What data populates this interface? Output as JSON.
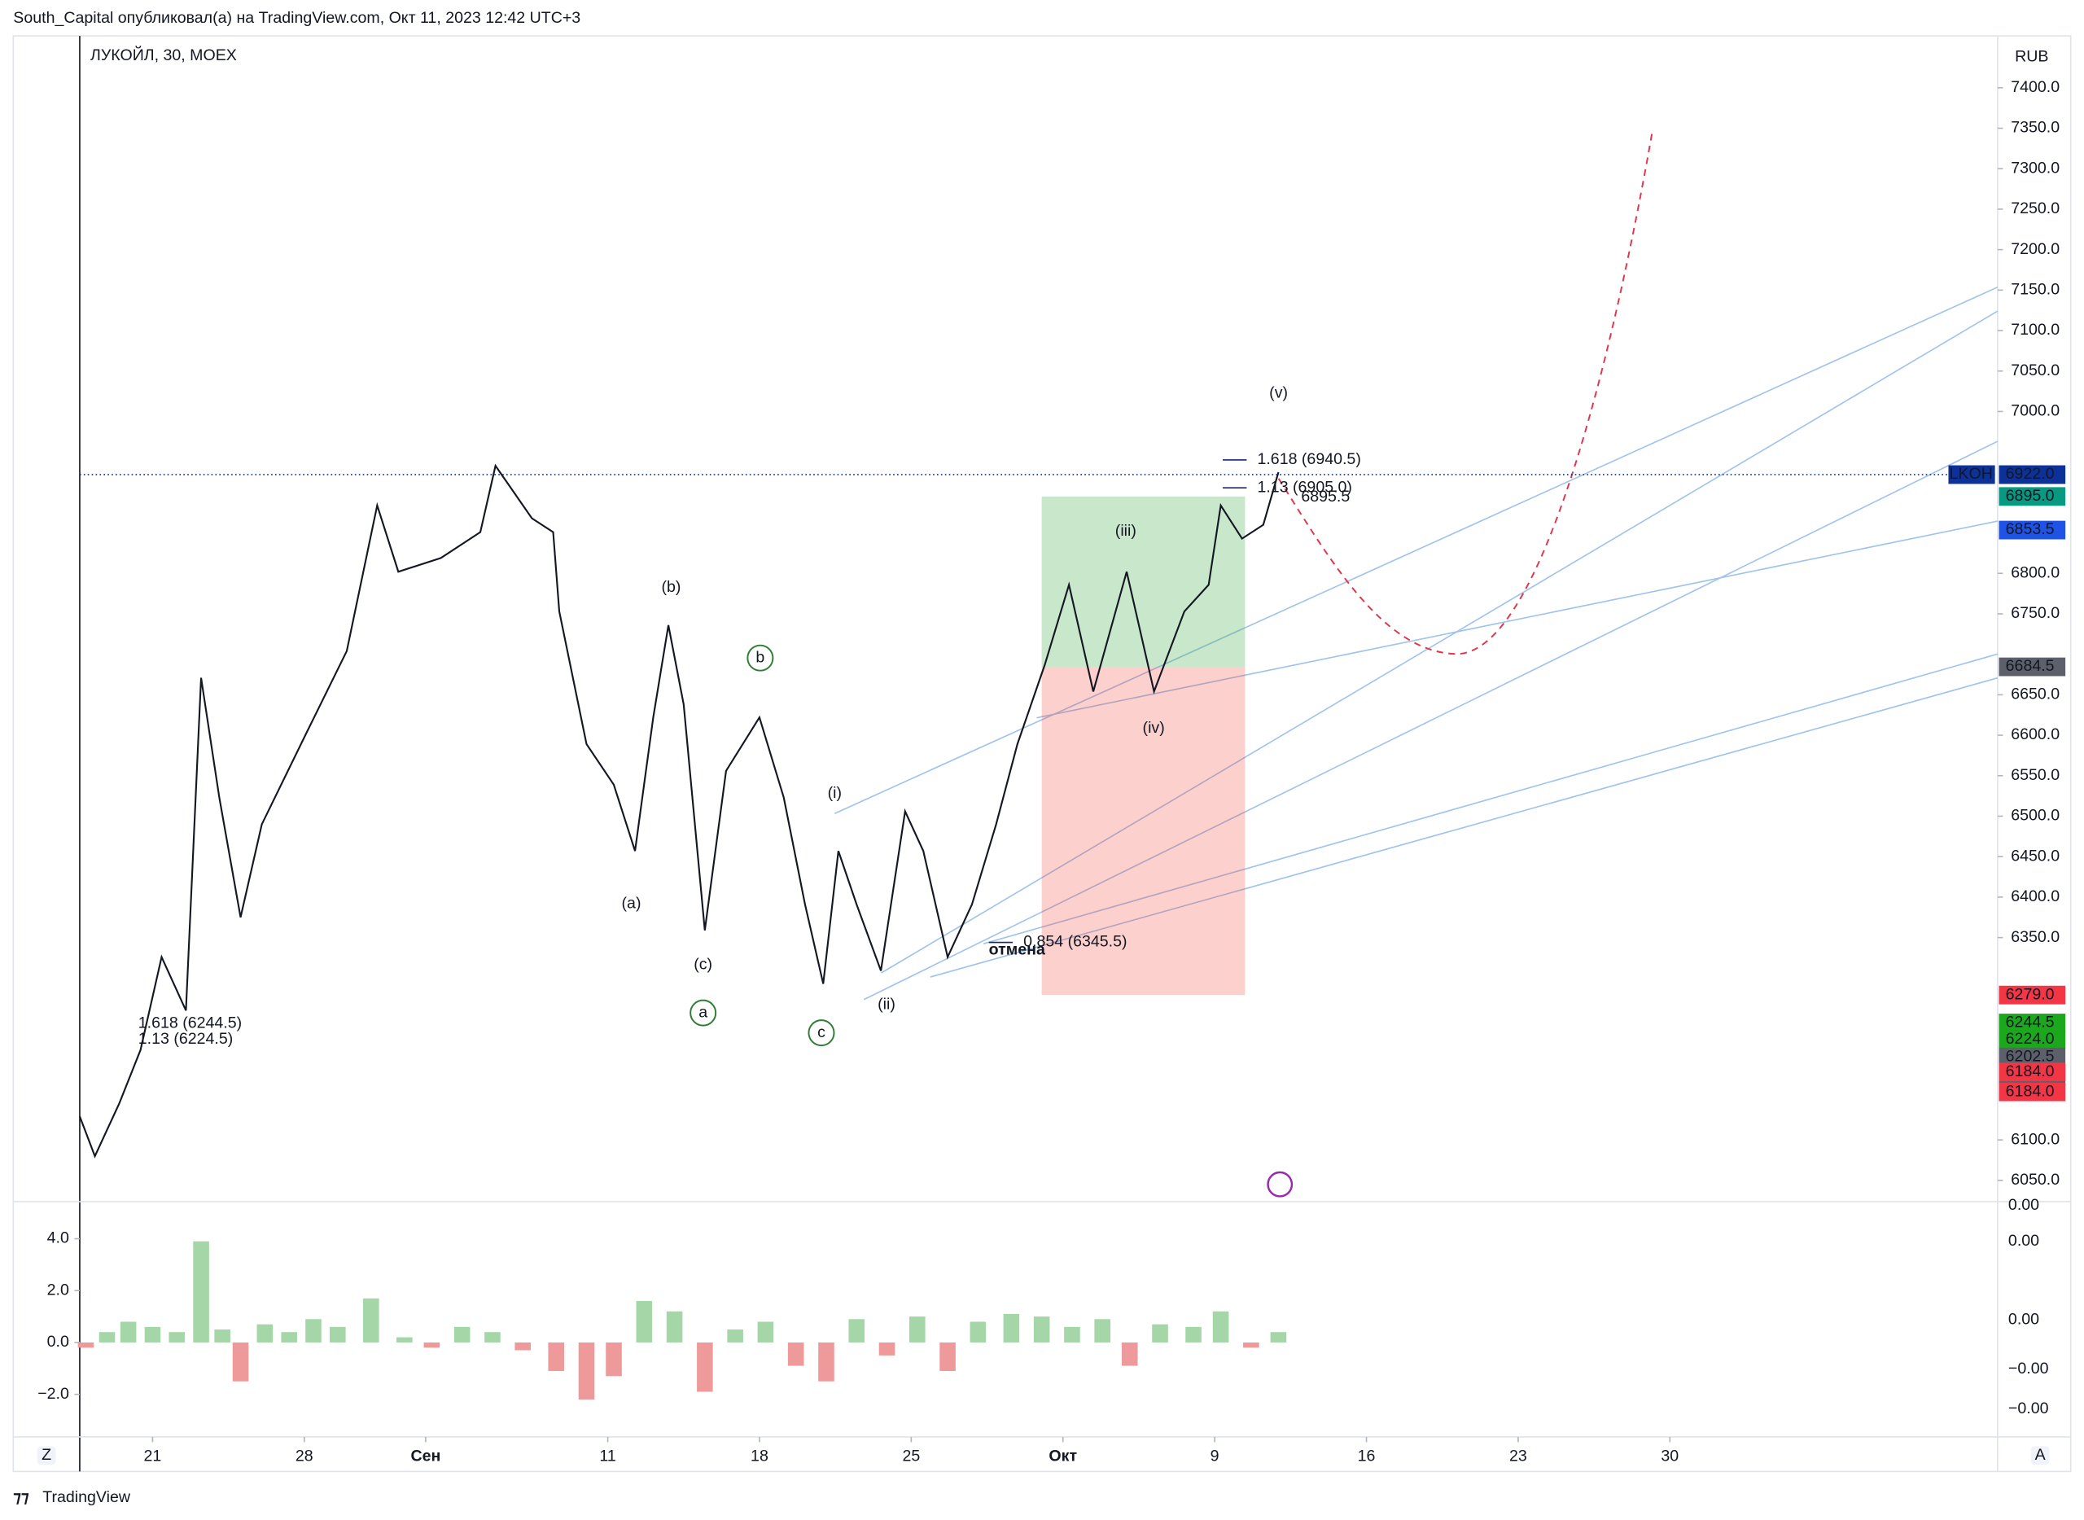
{
  "header": {
    "publisher": "South_Capital опубликовал(а) на TradingView.com, Окт 11, 2023 12:42 UTC+3",
    "logo": "TradingView",
    "left_button": "Z",
    "right_button": "A"
  },
  "chart_data": [
    {
      "type": "line",
      "title": "ЛУКОЙЛ, 30, MOEX",
      "currency": "RUB",
      "color": "#131722",
      "x": [
        2.6,
        3.1,
        3.9,
        4.6,
        5.3,
        6.1,
        6.6,
        7.2,
        7.9,
        8.6,
        10.1,
        11.4,
        12.4,
        13.1,
        14.5,
        15.8,
        16.3,
        17.5,
        18.2,
        18.4,
        19.3,
        20.2,
        20.9,
        21.5,
        22.0,
        22.5,
        23.2,
        23.9,
        25.0,
        25.8,
        26.5,
        27.1,
        27.6,
        28.2,
        29.0,
        29.8,
        30.4,
        31.2,
        32.0,
        32.8,
        33.5,
        34.4,
        35.2,
        36.0,
        37.1,
        38.0,
        39.0,
        39.8,
        40.2,
        40.9,
        41.6,
        42.1
      ],
      "values": [
        6129,
        6080,
        6145,
        6211,
        6326,
        6260,
        6671,
        6523,
        6375,
        6490,
        6605,
        6704,
        6884,
        6802,
        6819,
        6851,
        6933,
        6868,
        6851,
        6753,
        6589,
        6539,
        6457,
        6622,
        6736,
        6638,
        6359,
        6556,
        6622,
        6523,
        6391,
        6293,
        6457,
        6391,
        6309,
        6506,
        6457,
        6326,
        6391,
        6490,
        6589,
        6687,
        6786,
        6654,
        6802,
        6654,
        6753,
        6786,
        6884,
        6843,
        6860,
        6925
      ],
      "xlim": [
        2.6,
        65.8
      ],
      "xticks": [
        {
          "value": 5,
          "label": "21"
        },
        {
          "value": 10,
          "label": "28"
        },
        {
          "value": 14,
          "label": "Сен"
        },
        {
          "value": 20,
          "label": "11"
        },
        {
          "value": 25,
          "label": "18"
        },
        {
          "value": 30,
          "label": "25"
        },
        {
          "value": 35,
          "label": "Окт"
        },
        {
          "value": 40,
          "label": "9"
        },
        {
          "value": 45,
          "label": "16"
        },
        {
          "value": 50,
          "label": "23"
        },
        {
          "value": 55,
          "label": "30"
        }
      ],
      "ylim": [
        6025.4,
        7462.4
      ],
      "yticks": [
        {
          "value": 6050,
          "label": "6050.0"
        },
        {
          "value": 6100,
          "label": "6100.0"
        },
        {
          "value": 6350,
          "label": "6350.0"
        },
        {
          "value": 6400,
          "label": "6400.0"
        },
        {
          "value": 6450,
          "label": "6450.0"
        },
        {
          "value": 6500,
          "label": "6500.0"
        },
        {
          "value": 6550,
          "label": "6550.0"
        },
        {
          "value": 6600,
          "label": "6600.0"
        },
        {
          "value": 6650,
          "label": "6650.0"
        },
        {
          "value": 6750,
          "label": "6750.0"
        },
        {
          "value": 6800,
          "label": "6800.0"
        },
        {
          "value": 7000,
          "label": "7000.0"
        },
        {
          "value": 7050,
          "label": "7050.0"
        },
        {
          "value": 7100,
          "label": "7100.0"
        },
        {
          "value": 7150,
          "label": "7150.0"
        },
        {
          "value": 7200,
          "label": "7200.0"
        },
        {
          "value": 7250,
          "label": "7250.0"
        },
        {
          "value": 7300,
          "label": "7300.0"
        },
        {
          "value": 7350,
          "label": "7350.0"
        },
        {
          "value": 7400,
          "label": "7400.0"
        }
      ],
      "price_labels": [
        {
          "value": 6922,
          "label": "6922.0",
          "color": "#0c3299",
          "tag": "LKOH"
        },
        {
          "value": 6895,
          "label": "6895.0",
          "color": "#089981"
        },
        {
          "value": 6853.5,
          "label": "6853.5",
          "color": "#1e53e5"
        },
        {
          "value": 6684.5,
          "label": "6684.5",
          "color": "#5d606b"
        },
        {
          "value": 6279,
          "label": "6279.0",
          "color": "#f23645"
        },
        {
          "value": 6244.5,
          "label": "6244.5",
          "color": "#1ca81c"
        },
        {
          "value": 6224,
          "label": "6224.0",
          "color": "#1ca81c"
        },
        {
          "value": 6202.5,
          "label": "6202.5",
          "color": "#5d606b"
        },
        {
          "value": 6202.5,
          "label": "6202.5",
          "color": "#5d606b"
        },
        {
          "value": 6184,
          "label": "6184.0",
          "color": "#f23645"
        },
        {
          "value": 6184,
          "label": "6184.0",
          "color": "#f23645"
        }
      ],
      "position": {
        "entry": 6684.5,
        "target": 6895,
        "stop": 6279,
        "x": [
          34.3,
          41.0
        ]
      },
      "annotations": [
        {
          "text": "(v)",
          "color": "#4a90d9"
        },
        {
          "text": "(iii)",
          "color": "#4a90d9"
        },
        {
          "text": "(iv)",
          "color": "#6a5acd"
        },
        {
          "text": "(i)",
          "color": "#4a90d9"
        },
        {
          "text": "(ii)",
          "color": "#1e53e5"
        },
        {
          "text": "(b)",
          "color": "#6aa6e0"
        },
        {
          "text": "(a)",
          "color": "#6aa6e0"
        },
        {
          "text": "(c)",
          "color": "#6aa6e0"
        },
        {
          "text": "b",
          "color": "#2e7d32"
        },
        {
          "text": "a",
          "color": "#2e7d32"
        },
        {
          "text": "c",
          "color": "#2e7d32"
        },
        {
          "text": "1.618 (6940.5)",
          "color": "#1a237e"
        },
        {
          "text": "1.13 (6905.0)",
          "color": "#1a237e"
        },
        {
          "text": "6895.5",
          "color": "#f23645"
        },
        {
          "text": "0.854 (6345.5)",
          "color": "#1a237e"
        },
        {
          "text": "отмена",
          "color": "#000000"
        },
        {
          "text": "1.618 (6244.5)",
          "color": "#1a237e"
        },
        {
          "text": "1.13 (6224.5)",
          "color": "#1a237e"
        }
      ]
    },
    {
      "type": "bar",
      "positive_color": "#a5d6a7",
      "negative_color": "#ef9a9a",
      "x": [
        2.8,
        3.5,
        4.2,
        5.0,
        5.8,
        6.6,
        7.3,
        7.9,
        8.7,
        9.5,
        10.3,
        11.1,
        12.2,
        13.3,
        14.2,
        15.2,
        16.2,
        17.2,
        18.3,
        19.3,
        20.2,
        21.2,
        22.2,
        23.2,
        24.2,
        25.2,
        26.2,
        27.2,
        28.2,
        29.2,
        30.2,
        31.2,
        32.2,
        33.3,
        34.3,
        35.3,
        36.3,
        37.2,
        38.2,
        39.3,
        40.2,
        41.2,
        42.1
      ],
      "values": [
        -0.2,
        0.4,
        0.8,
        0.6,
        0.4,
        3.9,
        0.5,
        -1.5,
        0.7,
        0.4,
        0.9,
        0.6,
        1.7,
        0.2,
        -0.2,
        0.6,
        0.4,
        -0.3,
        -1.1,
        -2.2,
        -1.3,
        1.6,
        1.2,
        -1.9,
        0.5,
        0.8,
        -0.9,
        -1.5,
        0.9,
        -0.5,
        1.0,
        -1.1,
        0.8,
        1.1,
        1.0,
        0.6,
        0.9,
        -0.9,
        0.7,
        0.6,
        1.2,
        -0.2,
        0.4
      ],
      "xlim": [
        2.6,
        65.8
      ],
      "ylim": [
        -3.59,
        5.38
      ],
      "yticks": [
        {
          "value": 4,
          "label": "4.0"
        },
        {
          "value": 2,
          "label": "2.0"
        },
        {
          "value": 0,
          "label": "0.0"
        },
        {
          "value": -2,
          "label": "−2.0"
        }
      ],
      "scale_labels": [
        "0.00",
        "0.00",
        "0.00",
        "−0.00",
        "−0.00"
      ]
    }
  ]
}
